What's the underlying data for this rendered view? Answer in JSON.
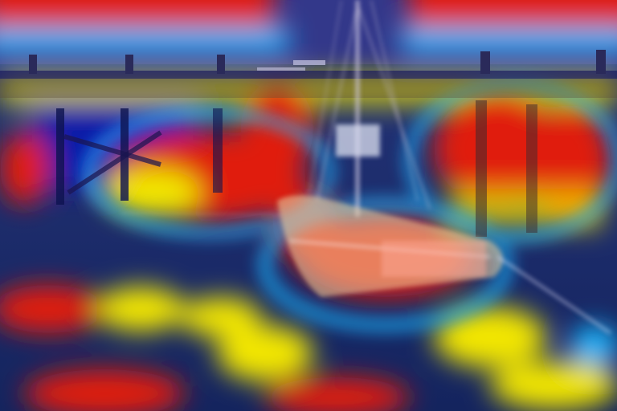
{
  "image": {
    "subject": "",
    "overlay": "heatmap",
    "colors": {
      "heat_low": "#0a1aa8",
      "heat_mid_low": "#1fb8ff",
      "heat_mid": "#f2e600",
      "heat_high": "#e01e10",
      "sea": "#1a2d6a",
      "sky": "#3a3f8f",
      "pier_shadow": "#0c1350",
      "hull": "#f0d2a0"
    }
  }
}
